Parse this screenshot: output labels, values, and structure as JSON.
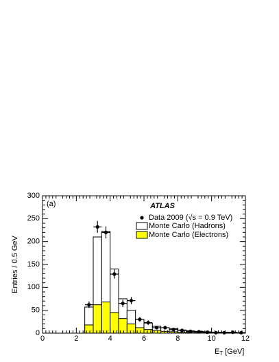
{
  "chart_data": {
    "type": "histogram",
    "annotations": {
      "label": "(a)",
      "experiment": "ATLAS"
    },
    "xlabel": {
      "main": "E",
      "sub": "T",
      "unit": "[GeV]"
    },
    "ylabel": "Entries / 0.5 GeV",
    "xlim": [
      0,
      12
    ],
    "xticks": [
      0,
      2,
      4,
      6,
      8,
      10,
      12
    ],
    "ylim": [
      0,
      300
    ],
    "yticks": [
      0,
      50,
      100,
      150,
      200,
      250,
      300
    ],
    "bins": [
      2.5,
      3,
      3.5,
      4,
      4.5,
      5,
      5.5,
      6,
      6.5,
      7,
      7.5,
      8,
      8.5,
      9,
      9.5,
      10,
      10.5,
      11,
      11.5,
      12
    ],
    "series": [
      {
        "name": "Monte Carlo (Hadrons)",
        "color": "#ffffff",
        "values": [
          57,
          210,
          222,
          140,
          75,
          50,
          30,
          22,
          15,
          12,
          10,
          7,
          5,
          4,
          3,
          2,
          2,
          1,
          1
        ]
      },
      {
        "name": "Monte Carlo (Electrons)",
        "color": "#ffff00",
        "values": [
          18,
          62,
          68,
          45,
          32,
          20,
          12,
          8,
          6,
          4,
          3,
          2,
          1.5,
          1,
          1,
          1,
          0.5,
          0.5,
          0.5
        ]
      }
    ],
    "data_points": {
      "name": "Data 2009 (√s = 0.9 TeV)",
      "color": "#000000",
      "x": [
        2.75,
        3.25,
        3.75,
        4.25,
        4.75,
        5.25,
        5.75,
        6.25,
        6.75,
        7.25,
        7.75,
        8.25,
        8.75,
        9.25,
        9.75,
        10.25,
        10.75,
        11.25,
        11.75
      ],
      "values": [
        62,
        232,
        220,
        129,
        65,
        71,
        30,
        23,
        12,
        12,
        8,
        6,
        4,
        3,
        2,
        1,
        1,
        2,
        1
      ],
      "errors": [
        7,
        13,
        13,
        10,
        8,
        8,
        5,
        5,
        3,
        3,
        3,
        2,
        2,
        2,
        1,
        1,
        1,
        1,
        1
      ]
    }
  }
}
